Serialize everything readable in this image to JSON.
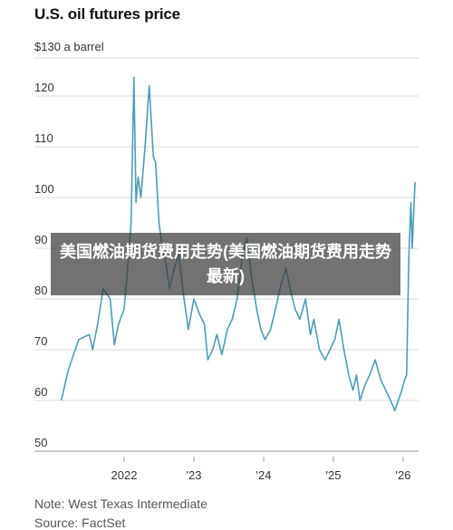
{
  "chart_data": {
    "type": "line",
    "title": "U.S. oil futures price",
    "ylabel": "$130 a barrel",
    "y_ticks": [
      "120",
      "110",
      "100",
      "90",
      "80",
      "70",
      "60",
      "50"
    ],
    "ylim": [
      50,
      130
    ],
    "x_ticks": [
      "2022",
      "'23",
      "'24",
      "'25",
      "'26"
    ],
    "x_tick_years": [
      2022,
      2023,
      2024,
      2025,
      2026
    ],
    "xlim": [
      2021.05,
      2026.2
    ],
    "grid": true,
    "series": [
      {
        "color": "#4a9eb8",
        "x": [
          2021.1,
          2021.2,
          2021.35,
          2021.5,
          2021.55,
          2021.62,
          2021.7,
          2021.8,
          2021.86,
          2021.92,
          2022.0,
          2022.05,
          2022.1,
          2022.14,
          2022.17,
          2022.2,
          2022.24,
          2022.3,
          2022.36,
          2022.42,
          2022.45,
          2022.5,
          2022.55,
          2022.6,
          2022.65,
          2022.7,
          2022.78,
          2022.85,
          2022.92,
          2023.0,
          2023.08,
          2023.15,
          2023.2,
          2023.27,
          2023.33,
          2023.4,
          2023.48,
          2023.55,
          2023.62,
          2023.7,
          2023.76,
          2023.82,
          2023.9,
          2023.96,
          2024.02,
          2024.1,
          2024.17,
          2024.25,
          2024.32,
          2024.38,
          2024.45,
          2024.52,
          2024.6,
          2024.67,
          2024.72,
          2024.8,
          2024.88,
          2024.95,
          2025.02,
          2025.08,
          2025.15,
          2025.22,
          2025.28,
          2025.33,
          2025.38,
          2025.45,
          2025.52,
          2025.6,
          2025.68,
          2025.75,
          2025.82,
          2025.88,
          2025.93,
          2025.98,
          2026.02,
          2026.05,
          2026.08,
          2026.11,
          2026.13,
          2026.15,
          2026.17
        ],
        "y": [
          60,
          66,
          72,
          73,
          70,
          75,
          82,
          80,
          71,
          75,
          78,
          86,
          95,
          123.7,
          99,
          104,
          100,
          110,
          122,
          108,
          107,
          95,
          90,
          87,
          82,
          85,
          89,
          81,
          74,
          80,
          77,
          75,
          68,
          70,
          73,
          69,
          74,
          76,
          80,
          89,
          92,
          85,
          78,
          74,
          72,
          74,
          78,
          83,
          86,
          82,
          78,
          76,
          80,
          73,
          76,
          70,
          68,
          70,
          72,
          76,
          70,
          65,
          62,
          65,
          60,
          63,
          65,
          68,
          64,
          62,
          60,
          58,
          60,
          62,
          64,
          65,
          88,
          99,
          90,
          97,
          103
        ]
      }
    ]
  },
  "overlay_text": "美国燃油期货费用走势(美国燃油期货费用走势最新)",
  "footer": {
    "note": "Note: West Texas Intermediate",
    "source": "Source: FactSet"
  }
}
